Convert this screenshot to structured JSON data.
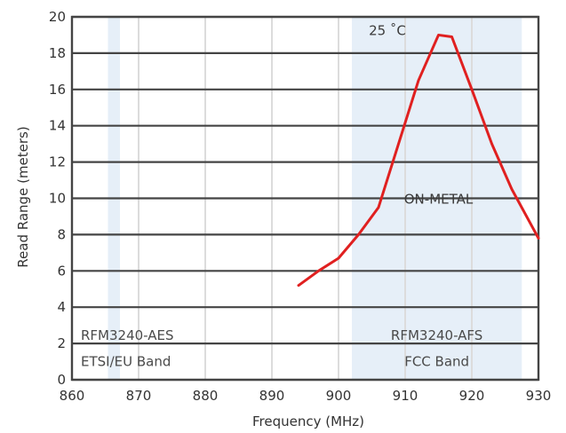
{
  "chart_data": {
    "type": "line",
    "xlabel": "Frequency (MHz)",
    "ylabel": "Read Range (meters)",
    "xlim": [
      860,
      930
    ],
    "ylim": [
      0,
      20
    ],
    "x_ticks": [
      "860",
      "870",
      "880",
      "890",
      "900",
      "910",
      "920",
      "930"
    ],
    "y_ticks": [
      "0",
      "2",
      "4",
      "6",
      "8",
      "10",
      "12",
      "14",
      "16",
      "18",
      "20"
    ],
    "grid": true,
    "series": [
      {
        "x": [
          894,
          897,
          900,
          903,
          906,
          909,
          912,
          915,
          917,
          920,
          923,
          926,
          930
        ],
        "y": [
          5.2,
          6.0,
          6.7,
          8.0,
          9.5,
          13.0,
          16.5,
          19.0,
          18.9,
          16.0,
          13.0,
          10.5,
          7.8
        ],
        "color": "#e02020"
      }
    ],
    "bands": [
      {
        "x_range": [
          865.4,
          867.2
        ],
        "line1": "RFM3240-AES",
        "line2": "ETSI/EU Band",
        "color": "#e6eff8"
      },
      {
        "x_range": [
          902,
          927.5
        ],
        "line1": "RFM3240-AFS",
        "line2": "FCC Band",
        "color": "#e6eff8"
      }
    ],
    "annotations": [
      {
        "text": "25 ˚C",
        "x": 906,
        "y": 19.0
      },
      {
        "text": "ON-METAL",
        "x": 915,
        "y": 9.7
      }
    ]
  }
}
